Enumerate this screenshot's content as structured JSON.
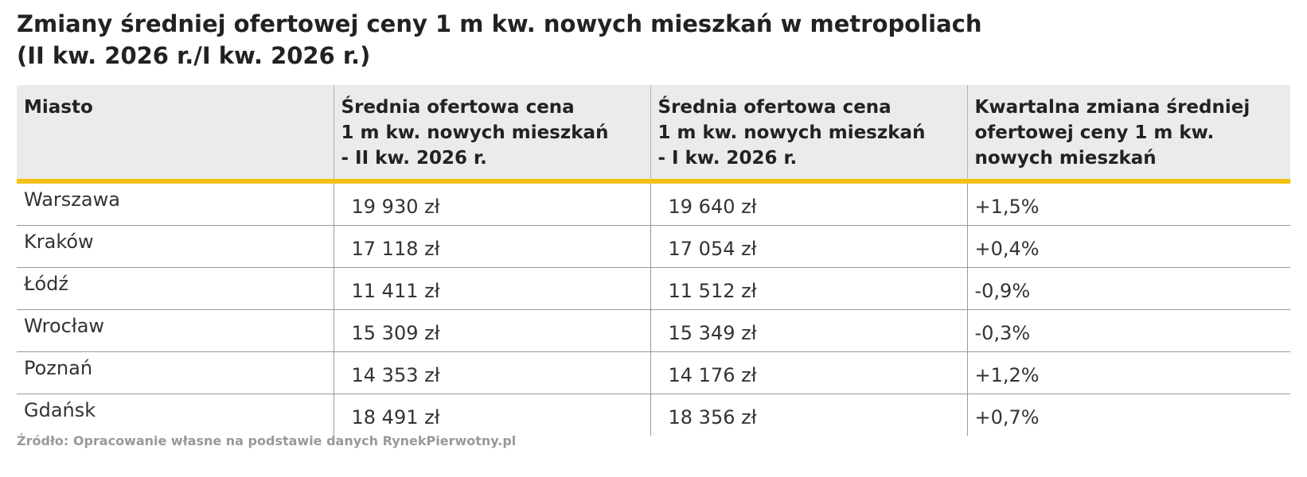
{
  "title": [
    "Zmiany średniej ofertowej ceny 1 m kw. nowych mieszkań w metropoliach",
    "(II kw. 2026 r./I kw. 2026 r.)"
  ],
  "table": {
    "header": [
      [
        "Miasto"
      ],
      [
        "Średnia ofertowa cena",
        "1 m kw.  nowych mieszkań",
        "- II kw. 2026 r."
      ],
      [
        "Średnia ofertowa cena",
        "1 m kw.  nowych mieszkań",
        "- I kw. 2026 r."
      ],
      [
        "Kwartalna zmiana średniej",
        "ofertowej ceny  1 m kw.",
        "nowych mieszkań"
      ]
    ],
    "rows": [
      [
        "Warszawa",
        "19 930 zł",
        "19 640 zł",
        "+1,5%"
      ],
      [
        "Kraków",
        "17 118 zł",
        "17 054 zł",
        "+0,4%"
      ],
      [
        "Łódź",
        "11 411 zł",
        "11 512 zł",
        "-0,9%"
      ],
      [
        "Wrocław",
        "15 309 zł",
        "15 349 zł",
        "-0,3%"
      ],
      [
        "Poznań",
        "14 353 zł",
        "14 176 zł",
        "+1,2%"
      ],
      [
        "Gdańsk",
        "18 491 zł",
        "18 356 zł",
        "+0,7%"
      ]
    ]
  },
  "source": "Źródło: Opracowanie własne na podstawie danych RynekPierwotny.pl"
}
